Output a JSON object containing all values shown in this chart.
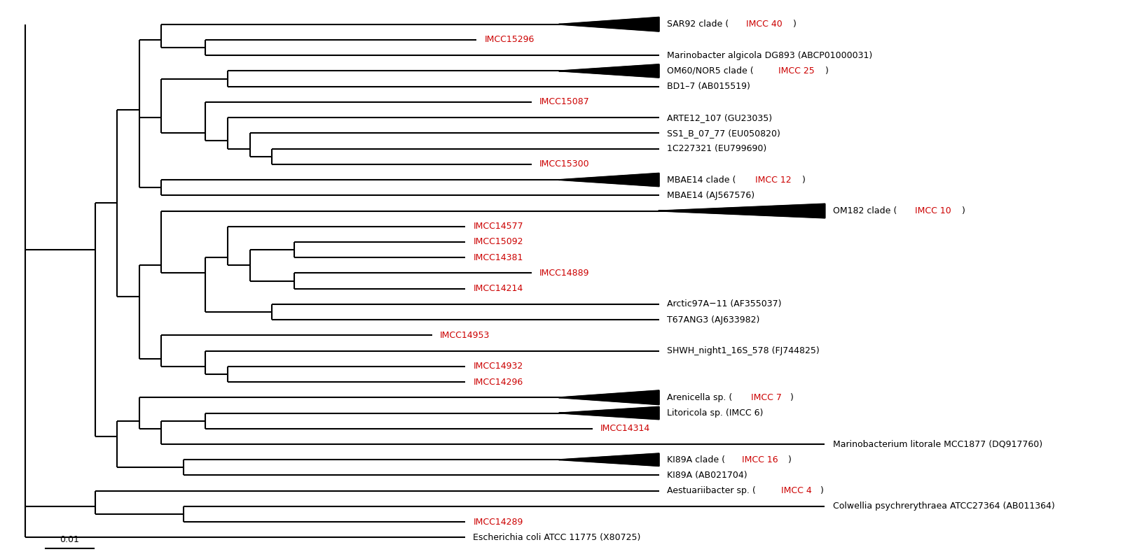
{
  "scale_bar_label": "0.01",
  "bg": "#ffffff",
  "lc": "#000000",
  "rc": "#cc0000",
  "fs": 9.0,
  "lw": 1.5,
  "taxa": [
    {
      "key": "SAR92",
      "y": 34,
      "xt": 0.595,
      "is_tri": true,
      "parts": [
        [
          "SAR92 clade (",
          "k"
        ],
        [
          "IMCC 40",
          "r"
        ],
        [
          ")",
          "k"
        ]
      ]
    },
    {
      "key": "IMCC15296",
      "y": 33,
      "xt": 0.43,
      "is_tri": false,
      "parts": [
        [
          "IMCC15296",
          "r"
        ]
      ]
    },
    {
      "key": "Marinobacter",
      "y": 32,
      "xt": 0.595,
      "is_tri": false,
      "parts": [
        [
          "Marinobacter algicola DG893 (ABCP01000031)",
          "k"
        ]
      ]
    },
    {
      "key": "OM60",
      "y": 31,
      "xt": 0.595,
      "is_tri": true,
      "parts": [
        [
          "OM60/NOR5 clade (",
          "k"
        ],
        [
          "IMCC 25",
          "r"
        ],
        [
          ")",
          "k"
        ]
      ]
    },
    {
      "key": "BD17",
      "y": 30,
      "xt": 0.595,
      "is_tri": false,
      "parts": [
        [
          "BD1–7 (AB015519)",
          "k"
        ]
      ]
    },
    {
      "key": "IMCC15087",
      "y": 29,
      "xt": 0.48,
      "is_tri": false,
      "parts": [
        [
          "IMCC15087",
          "r"
        ]
      ]
    },
    {
      "key": "ARTE12",
      "y": 28,
      "xt": 0.595,
      "is_tri": false,
      "parts": [
        [
          "ARTE12_107 (GU23035)",
          "k"
        ]
      ]
    },
    {
      "key": "SS1",
      "y": 27,
      "xt": 0.595,
      "is_tri": false,
      "parts": [
        [
          "SS1_B_07_77 (EU050820)",
          "k"
        ]
      ]
    },
    {
      "key": "1C227321",
      "y": 26,
      "xt": 0.595,
      "is_tri": false,
      "parts": [
        [
          "1C227321 (EU799690)",
          "k"
        ]
      ]
    },
    {
      "key": "IMCC15300",
      "y": 25,
      "xt": 0.48,
      "is_tri": false,
      "parts": [
        [
          "IMCC15300",
          "r"
        ]
      ]
    },
    {
      "key": "MBAE14clade",
      "y": 24,
      "xt": 0.595,
      "is_tri": true,
      "parts": [
        [
          "MBAE14 clade (",
          "k"
        ],
        [
          "IMCC 12",
          "r"
        ],
        [
          ")",
          "k"
        ]
      ]
    },
    {
      "key": "MBAE14",
      "y": 23,
      "xt": 0.595,
      "is_tri": false,
      "parts": [
        [
          "MBAE14 (AJ567576)",
          "k"
        ]
      ]
    },
    {
      "key": "OM182",
      "y": 22,
      "xt": 0.745,
      "is_tri": true,
      "parts": [
        [
          "OM182 clade (",
          "k"
        ],
        [
          "IMCC 10",
          "r"
        ],
        [
          ")",
          "k"
        ]
      ]
    },
    {
      "key": "IMCC14577",
      "y": 21,
      "xt": 0.42,
      "is_tri": false,
      "parts": [
        [
          "IMCC14577",
          "r"
        ]
      ]
    },
    {
      "key": "IMCC15092",
      "y": 20,
      "xt": 0.42,
      "is_tri": false,
      "parts": [
        [
          "IMCC15092",
          "r"
        ]
      ]
    },
    {
      "key": "IMCC14381",
      "y": 19,
      "xt": 0.42,
      "is_tri": false,
      "parts": [
        [
          "IMCC14381",
          "r"
        ]
      ]
    },
    {
      "key": "IMCC14889",
      "y": 18,
      "xt": 0.48,
      "is_tri": false,
      "parts": [
        [
          "IMCC14889",
          "r"
        ]
      ]
    },
    {
      "key": "IMCC14214",
      "y": 17,
      "xt": 0.42,
      "is_tri": false,
      "parts": [
        [
          "IMCC14214",
          "r"
        ]
      ]
    },
    {
      "key": "Arctic97A",
      "y": 16,
      "xt": 0.595,
      "is_tri": false,
      "parts": [
        [
          "Arctic97A−11 (AF355037)",
          "k"
        ]
      ]
    },
    {
      "key": "T67ANG3",
      "y": 15,
      "xt": 0.595,
      "is_tri": false,
      "parts": [
        [
          "T67ANG3 (AJ633982)",
          "k"
        ]
      ]
    },
    {
      "key": "IMCC14953",
      "y": 14,
      "xt": 0.39,
      "is_tri": false,
      "parts": [
        [
          "IMCC14953",
          "r"
        ]
      ]
    },
    {
      "key": "SHWH",
      "y": 13,
      "xt": 0.595,
      "is_tri": false,
      "parts": [
        [
          "SHWH_night1_16S_578 (FJ744825)",
          "k"
        ]
      ]
    },
    {
      "key": "IMCC14932",
      "y": 12,
      "xt": 0.42,
      "is_tri": false,
      "parts": [
        [
          "IMCC14932",
          "r"
        ]
      ]
    },
    {
      "key": "IMCC14296",
      "y": 11,
      "xt": 0.42,
      "is_tri": false,
      "parts": [
        [
          "IMCC14296",
          "r"
        ]
      ]
    },
    {
      "key": "Arenicella",
      "y": 10,
      "xt": 0.595,
      "is_tri": true,
      "parts": [
        [
          "Arenicella sp. (",
          "k"
        ],
        [
          "IMCC 7",
          "r"
        ],
        [
          ")",
          "k"
        ]
      ]
    },
    {
      "key": "Litoricola",
      "y": 9,
      "xt": 0.595,
      "is_tri": false,
      "parts": [
        [
          "Litoricola sp. (IMCC 6)",
          "k"
        ]
      ]
    },
    {
      "key": "IMCC14314",
      "y": 8,
      "xt": 0.535,
      "is_tri": false,
      "parts": [
        [
          "IMCC14314",
          "r"
        ]
      ]
    },
    {
      "key": "Marinobacterium",
      "y": 7,
      "xt": 0.745,
      "is_tri": false,
      "parts": [
        [
          "Marinobacterium litorale MCC1877 (DQ917760)",
          "k"
        ]
      ]
    },
    {
      "key": "KI89Aclade",
      "y": 6,
      "xt": 0.595,
      "is_tri": true,
      "parts": [
        [
          "KI89A clade (",
          "k"
        ],
        [
          "IMCC 16",
          "r"
        ],
        [
          ")",
          "k"
        ]
      ]
    },
    {
      "key": "KI89A",
      "y": 5,
      "xt": 0.595,
      "is_tri": false,
      "parts": [
        [
          "KI89A (AB021704)",
          "k"
        ]
      ]
    },
    {
      "key": "Aestuarii",
      "y": 4,
      "xt": 0.595,
      "is_tri": false,
      "parts": [
        [
          "Aestuariibacter sp. (",
          "k"
        ],
        [
          "IMCC 4",
          "r"
        ],
        [
          ")",
          "k"
        ]
      ]
    },
    {
      "key": "Colwellia",
      "y": 3,
      "xt": 0.745,
      "is_tri": false,
      "parts": [
        [
          "Colwellia psychrerythraea ATCC27364 (AB011364)",
          "k"
        ]
      ]
    },
    {
      "key": "IMCC14289",
      "y": 2,
      "xt": 0.42,
      "is_tri": false,
      "parts": [
        [
          "IMCC14289",
          "r"
        ]
      ]
    },
    {
      "key": "Ecoli",
      "y": 1,
      "xt": 0.42,
      "is_tri": false,
      "parts": [
        [
          "Escherichia coli ATCC 11775 (X80725)",
          "k"
        ]
      ]
    }
  ]
}
